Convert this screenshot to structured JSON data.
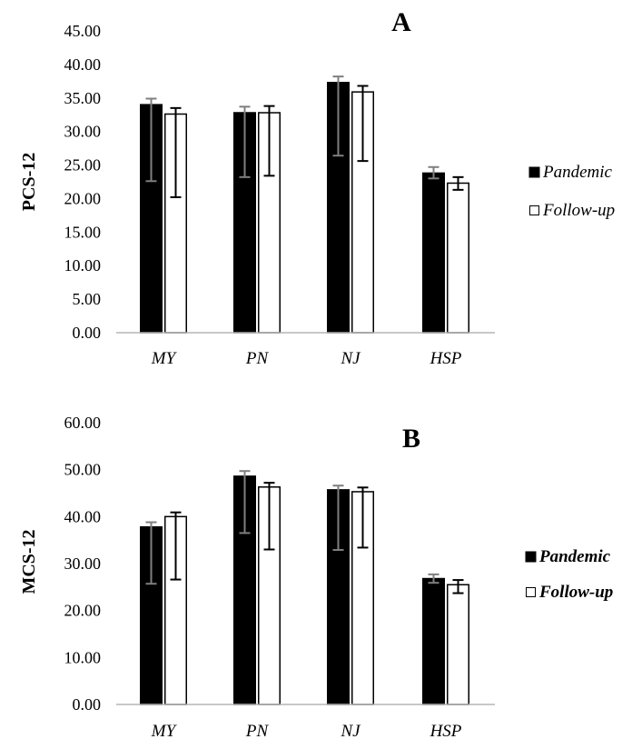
{
  "chart_data": [
    {
      "type": "bar",
      "title": "A",
      "ylabel": "PCS-12",
      "xlabel": "",
      "ylim": [
        0,
        45
      ],
      "yticks": [
        "0.00",
        "5.00",
        "10.00",
        "15.00",
        "20.00",
        "25.00",
        "30.00",
        "35.00",
        "40.00",
        "45.00"
      ],
      "categories": [
        "MY",
        "PN",
        "NJ",
        "HSP"
      ],
      "series": [
        {
          "name": "Pandemic",
          "color": "#000000",
          "values": [
            34.0,
            32.8,
            37.3,
            23.8
          ],
          "err_high": [
            34.9,
            33.7,
            38.2,
            24.7
          ],
          "err_low": [
            22.6,
            23.2,
            26.4,
            23.0
          ]
        },
        {
          "name": "Follow-up",
          "color": "#ffffff",
          "values": [
            32.6,
            32.8,
            35.9,
            22.3
          ],
          "err_high": [
            33.5,
            33.8,
            36.8,
            23.2
          ],
          "err_low": [
            20.2,
            23.4,
            25.6,
            21.3
          ]
        }
      ]
    },
    {
      "type": "bar",
      "title": "B",
      "ylabel": "MCS-12",
      "xlabel": "",
      "ylim": [
        0,
        60
      ],
      "yticks": [
        "0.00",
        "10.00",
        "20.00",
        "30.00",
        "40.00",
        "50.00",
        "60.00"
      ],
      "categories": [
        "MY",
        "PN",
        "NJ",
        "HSP"
      ],
      "series": [
        {
          "name": "Pandemic",
          "color": "#000000",
          "values": [
            37.8,
            48.6,
            45.7,
            26.8
          ],
          "err_high": [
            38.8,
            49.7,
            46.6,
            27.7
          ],
          "err_low": [
            25.7,
            36.5,
            32.9,
            25.9
          ]
        },
        {
          "name": "Follow-up",
          "color": "#ffffff",
          "values": [
            40.0,
            46.3,
            45.3,
            25.5
          ],
          "err_high": [
            40.9,
            47.2,
            46.2,
            26.5
          ],
          "err_low": [
            26.6,
            33.0,
            33.4,
            23.7
          ]
        }
      ]
    }
  ]
}
